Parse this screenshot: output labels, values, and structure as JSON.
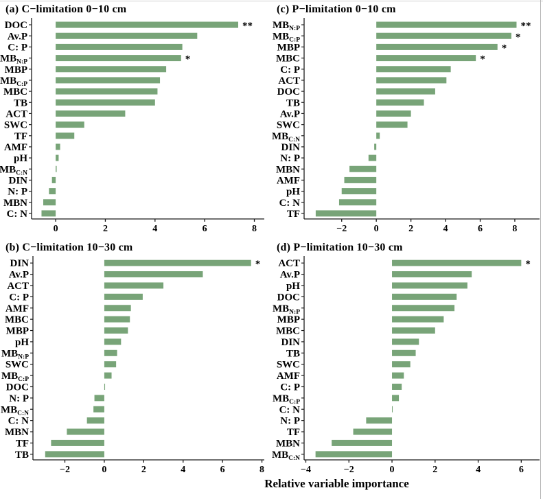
{
  "figure": {
    "xlabel": "Relative variable importance",
    "colors": {
      "bar": "#78a478",
      "axis": "#1a1a1a",
      "text": "#000000",
      "border": "#bfbfbf"
    }
  },
  "chart_data": [
    {
      "type": "bar",
      "panel": "a",
      "title": "(a) C−limitation 0−10 cm",
      "orientation": "horizontal",
      "xlabel": "Relative variable importance",
      "xlim": [
        -0.97,
        8.4
      ],
      "xticks": [
        {
          "v": 0,
          "label": "0"
        },
        {
          "v": 2,
          "label": "2"
        },
        {
          "v": 4,
          "label": "4"
        },
        {
          "v": 6,
          "label": "6"
        },
        {
          "v": 8,
          "label": "8"
        }
      ],
      "items": [
        {
          "label": "DOC",
          "sub": "",
          "value": 7.35,
          "sig": "**"
        },
        {
          "label": "Av.P",
          "sub": "",
          "value": 5.7,
          "sig": ""
        },
        {
          "label": "C: P",
          "sub": "",
          "value": 5.1,
          "sig": ""
        },
        {
          "label": "MB",
          "sub": "N:P",
          "value": 5.05,
          "sig": "*"
        },
        {
          "label": "MBP",
          "sub": "",
          "value": 4.45,
          "sig": ""
        },
        {
          "label": "MB",
          "sub": "C:P",
          "value": 4.2,
          "sig": ""
        },
        {
          "label": "MBC",
          "sub": "",
          "value": 4.1,
          "sig": ""
        },
        {
          "label": "TB",
          "sub": "",
          "value": 4.0,
          "sig": ""
        },
        {
          "label": "ACT",
          "sub": "",
          "value": 2.8,
          "sig": ""
        },
        {
          "label": "SWC",
          "sub": "",
          "value": 1.15,
          "sig": ""
        },
        {
          "label": "TF",
          "sub": "",
          "value": 0.75,
          "sig": ""
        },
        {
          "label": "AMF",
          "sub": "",
          "value": 0.18,
          "sig": ""
        },
        {
          "label": "pH",
          "sub": "",
          "value": 0.12,
          "sig": ""
        },
        {
          "label": "MB",
          "sub": "C:N",
          "value": 0.04,
          "sig": ""
        },
        {
          "label": "DIN",
          "sub": "",
          "value": -0.15,
          "sig": ""
        },
        {
          "label": "N: P",
          "sub": "",
          "value": -0.27,
          "sig": ""
        },
        {
          "label": "MBN",
          "sub": "",
          "value": -0.5,
          "sig": ""
        },
        {
          "label": "C: N",
          "sub": "",
          "value": -0.57,
          "sig": ""
        }
      ]
    },
    {
      "type": "bar",
      "panel": "b",
      "title": "(b) C−limitation 10−30 cm",
      "orientation": "horizontal",
      "xlabel": "Relative variable importance",
      "xlim": [
        -3.62,
        8.12
      ],
      "xticks": [
        {
          "v": -2,
          "label": "−2"
        },
        {
          "v": 0,
          "label": "0"
        },
        {
          "v": 2,
          "label": "2"
        },
        {
          "v": 4,
          "label": "4"
        },
        {
          "v": 6,
          "label": "6"
        },
        {
          "v": 8,
          "label": "8"
        }
      ],
      "items": [
        {
          "label": "DIN",
          "sub": "",
          "value": 7.45,
          "sig": "*"
        },
        {
          "label": "Av.P",
          "sub": "",
          "value": 5.0,
          "sig": ""
        },
        {
          "label": "ACT",
          "sub": "",
          "value": 3.0,
          "sig": ""
        },
        {
          "label": "C: P",
          "sub": "",
          "value": 1.95,
          "sig": ""
        },
        {
          "label": "AMF",
          "sub": "",
          "value": 1.35,
          "sig": ""
        },
        {
          "label": "MBC",
          "sub": "",
          "value": 1.3,
          "sig": ""
        },
        {
          "label": "MBP",
          "sub": "",
          "value": 1.2,
          "sig": ""
        },
        {
          "label": "pH",
          "sub": "",
          "value": 0.85,
          "sig": ""
        },
        {
          "label": "MB",
          "sub": "N:P",
          "value": 0.65,
          "sig": ""
        },
        {
          "label": "SWC",
          "sub": "",
          "value": 0.6,
          "sig": ""
        },
        {
          "label": "MB",
          "sub": "C:P",
          "value": 0.37,
          "sig": ""
        },
        {
          "label": "DOC",
          "sub": "",
          "value": 0.04,
          "sig": ""
        },
        {
          "label": "N: P",
          "sub": "",
          "value": -0.5,
          "sig": ""
        },
        {
          "label": "MB",
          "sub": "C:N",
          "value": -0.55,
          "sig": ""
        },
        {
          "label": "C: N",
          "sub": "",
          "value": -0.88,
          "sig": ""
        },
        {
          "label": "MBN",
          "sub": "",
          "value": -1.9,
          "sig": ""
        },
        {
          "label": "TF",
          "sub": "",
          "value": -2.7,
          "sig": ""
        },
        {
          "label": "TB",
          "sub": "",
          "value": -3.0,
          "sig": ""
        }
      ]
    },
    {
      "type": "bar",
      "panel": "c",
      "title": "(c) P−limitation 0−10 cm",
      "orientation": "horizontal",
      "xlabel": "Relative variable importance",
      "xlim": [
        -4.17,
        9.43
      ],
      "xticks": [
        {
          "v": -2,
          "label": "−2"
        },
        {
          "v": 0,
          "label": "0"
        },
        {
          "v": 2,
          "label": "2"
        },
        {
          "v": 4,
          "label": "4"
        },
        {
          "v": 6,
          "label": "6"
        },
        {
          "v": 8,
          "label": "8"
        }
      ],
      "items": [
        {
          "label": "MB",
          "sub": "N:P",
          "value": 8.1,
          "sig": "**"
        },
        {
          "label": "MB",
          "sub": "C:P",
          "value": 7.8,
          "sig": "*"
        },
        {
          "label": "MBP",
          "sub": "",
          "value": 7.0,
          "sig": "*"
        },
        {
          "label": "MBC",
          "sub": "",
          "value": 5.75,
          "sig": "*"
        },
        {
          "label": "C: P",
          "sub": "",
          "value": 4.3,
          "sig": ""
        },
        {
          "label": "ACT",
          "sub": "",
          "value": 4.05,
          "sig": ""
        },
        {
          "label": "DOC",
          "sub": "",
          "value": 3.4,
          "sig": ""
        },
        {
          "label": "TB",
          "sub": "",
          "value": 2.75,
          "sig": ""
        },
        {
          "label": "Av.P",
          "sub": "",
          "value": 2.0,
          "sig": ""
        },
        {
          "label": "SWC",
          "sub": "",
          "value": 1.8,
          "sig": ""
        },
        {
          "label": "MB",
          "sub": "C:N",
          "value": 0.2,
          "sig": ""
        },
        {
          "label": "DIN",
          "sub": "",
          "value": -0.12,
          "sig": ""
        },
        {
          "label": "N: P",
          "sub": "",
          "value": -0.45,
          "sig": ""
        },
        {
          "label": "MBN",
          "sub": "",
          "value": -1.55,
          "sig": ""
        },
        {
          "label": "AMF",
          "sub": "",
          "value": -1.85,
          "sig": ""
        },
        {
          "label": "pH",
          "sub": "",
          "value": -2.0,
          "sig": ""
        },
        {
          "label": "C: N",
          "sub": "",
          "value": -2.15,
          "sig": ""
        },
        {
          "label": "TF",
          "sub": "",
          "value": -3.5,
          "sig": ""
        }
      ]
    },
    {
      "type": "bar",
      "panel": "d",
      "title": "(d) P−limitation 10−30 cm",
      "orientation": "horizontal",
      "xlabel": "Relative variable importance",
      "xlim": [
        -4.08,
        6.85
      ],
      "xticks": [
        {
          "v": -4,
          "label": "−4"
        },
        {
          "v": -2,
          "label": "−2"
        },
        {
          "v": 0,
          "label": "0"
        },
        {
          "v": 2,
          "label": "2"
        },
        {
          "v": 4,
          "label": "4"
        },
        {
          "v": 6,
          "label": "6"
        }
      ],
      "items": [
        {
          "label": "ACT",
          "sub": "",
          "value": 6.0,
          "sig": "*"
        },
        {
          "label": "Av.P",
          "sub": "",
          "value": 3.7,
          "sig": ""
        },
        {
          "label": "pH",
          "sub": "",
          "value": 3.5,
          "sig": ""
        },
        {
          "label": "DOC",
          "sub": "",
          "value": 3.0,
          "sig": ""
        },
        {
          "label": "MB",
          "sub": "N:P",
          "value": 2.9,
          "sig": ""
        },
        {
          "label": "MBP",
          "sub": "",
          "value": 2.4,
          "sig": ""
        },
        {
          "label": "MBC",
          "sub": "",
          "value": 2.0,
          "sig": ""
        },
        {
          "label": "DIN",
          "sub": "",
          "value": 1.25,
          "sig": ""
        },
        {
          "label": "TB",
          "sub": "",
          "value": 1.1,
          "sig": ""
        },
        {
          "label": "SWC",
          "sub": "",
          "value": 0.85,
          "sig": ""
        },
        {
          "label": "AMF",
          "sub": "",
          "value": 0.55,
          "sig": ""
        },
        {
          "label": "C: P",
          "sub": "",
          "value": 0.45,
          "sig": ""
        },
        {
          "label": "MB",
          "sub": "C:P",
          "value": 0.32,
          "sig": ""
        },
        {
          "label": "C: N",
          "sub": "",
          "value": 0.03,
          "sig": ""
        },
        {
          "label": "N: P",
          "sub": "",
          "value": -1.2,
          "sig": ""
        },
        {
          "label": "TF",
          "sub": "",
          "value": -1.8,
          "sig": ""
        },
        {
          "label": "MBN",
          "sub": "",
          "value": -2.8,
          "sig": ""
        },
        {
          "label": "MB",
          "sub": "C:N",
          "value": -3.55,
          "sig": ""
        }
      ]
    }
  ]
}
